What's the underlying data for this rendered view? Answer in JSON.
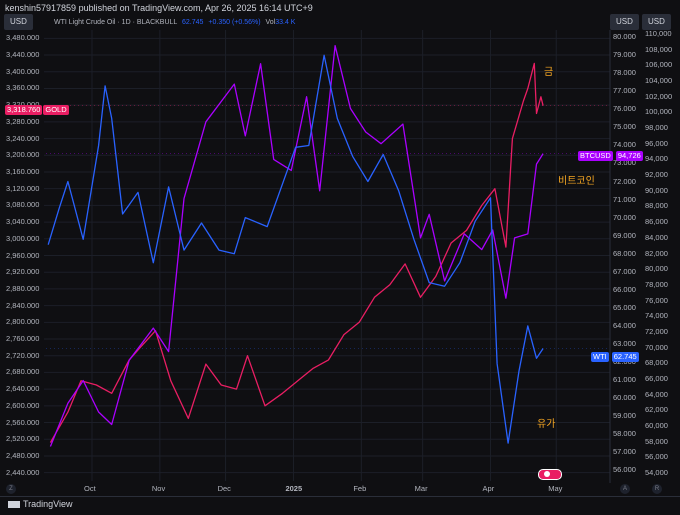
{
  "header": {
    "published": "kenshin57917859 published on TradingView.com, Apr 26, 2025 16:14 UTC+9",
    "left_usd": "USD",
    "right_usd1": "USD",
    "right_usd2": "USD"
  },
  "legend": {
    "symbol": "WTI Light Crude Oil · 1D · BLACKBULL",
    "price": "62.745",
    "change": "+0.350 (+0.56%)",
    "vol_label": "Vol",
    "vol_value": "33.4 K"
  },
  "tags": {
    "gold_value": "3,318.760",
    "gold_name": "GOLD",
    "btc_name": "BTCUSD",
    "btc_value": "94,726",
    "wti_name": "WTI",
    "wti_value": "62.745"
  },
  "annotations": {
    "gold": "금",
    "bitcoin": "비트코인",
    "oil": "유가"
  },
  "footer": {
    "logo": "TradingView",
    "left_corner": "Z",
    "right_corner_a": "A",
    "right_corner_b": "R"
  },
  "colors": {
    "gold": "#e91e63",
    "bitcoin": "#aa00ff",
    "wti": "#2962ff",
    "annotation": "#f5a623"
  },
  "chart_data": {
    "type": "line",
    "title": "WTI Light Crude Oil · 1D · BLACKBULL",
    "x_ticks": [
      "Oct",
      "Nov",
      "Dec",
      "2025",
      "Feb",
      "Mar",
      "Apr",
      "May"
    ],
    "x_range": [
      "2024-09-10",
      "2025-05-05"
    ],
    "left_axis": {
      "label": "USD",
      "series": "GOLD",
      "range": [
        2420,
        3500
      ],
      "ticks": [
        3480,
        3440,
        3400,
        3360,
        3320,
        3280,
        3240,
        3200,
        3160,
        3120,
        3080,
        3040,
        3000,
        2960,
        2920,
        2880,
        2840,
        2800,
        2760,
        2720,
        2680,
        2640,
        2600,
        2560,
        2520,
        2480,
        2440
      ],
      "tick_labels": [
        "3,480.000",
        "3,440.000",
        "3,400.000",
        "3,360.000",
        "3,320.000",
        "3,280.000",
        "3,240.000",
        "3,200.000",
        "3,160.000",
        "3,120.000",
        "3,080.000",
        "3,040.000",
        "3,000.000",
        "2,960.000",
        "2,920.000",
        "2,880.000",
        "2,840.000",
        "2,800.000",
        "2,760.000",
        "2,720.000",
        "2,680.000",
        "2,640.000",
        "2,600.000",
        "2,560.000",
        "2,520.000",
        "2,480.000",
        "2,440.000"
      ]
    },
    "wti_axis": {
      "label": "USD",
      "series": "WTI",
      "range": [
        55.4,
        80.4
      ],
      "ticks": [
        80,
        79,
        78,
        77,
        76,
        75,
        74,
        73,
        72,
        71,
        70,
        69,
        68,
        67,
        66,
        65,
        64,
        63,
        62,
        61,
        60,
        59,
        58,
        57,
        56
      ],
      "tick_labels": [
        "80.000",
        "79.000",
        "78.000",
        "77.000",
        "76.000",
        "75.000",
        "74.000",
        "73.000",
        "72.000",
        "71.000",
        "70.000",
        "69.000",
        "68.000",
        "67.000",
        "66.000",
        "65.000",
        "64.000",
        "63.000",
        "62.000",
        "61.000",
        "60.000",
        "59.000",
        "58.000",
        "57.000",
        "56.000"
      ]
    },
    "btc_axis": {
      "label": "USD",
      "series": "BTCUSD",
      "range": [
        53000,
        110500
      ],
      "ticks": [
        110000,
        108000,
        106000,
        104000,
        102000,
        100000,
        98000,
        96000,
        94000,
        92000,
        90000,
        88000,
        86000,
        84000,
        82000,
        80000,
        78000,
        76000,
        74000,
        72000,
        70000,
        68000,
        66000,
        64000,
        62000,
        60000,
        58000,
        56000,
        54000
      ],
      "tick_labels": [
        "110,000",
        "108,000",
        "106,000",
        "104,000",
        "102,000",
        "100,000",
        "98,000",
        "96,000",
        "94,000",
        "92,000",
        "90,000",
        "88,000",
        "86,000",
        "84,000",
        "82,000",
        "80,000",
        "78,000",
        "76,000",
        "74,000",
        "72,000",
        "70,000",
        "68,000",
        "66,000",
        "64,000",
        "62,000",
        "60,000",
        "58,000",
        "56,000",
        "54,000"
      ]
    },
    "series": [
      {
        "name": "GOLD",
        "axis": "left",
        "x": [
          "2024-09-12",
          "2024-09-20",
          "2024-09-26",
          "2024-10-03",
          "2024-10-10",
          "2024-10-18",
          "2024-10-23",
          "2024-10-30",
          "2024-11-06",
          "2024-11-14",
          "2024-11-22",
          "2024-11-29",
          "2024-12-06",
          "2024-12-11",
          "2024-12-19",
          "2024-12-27",
          "2025-01-03",
          "2025-01-10",
          "2025-01-17",
          "2025-01-24",
          "2025-01-31",
          "2025-02-07",
          "2025-02-14",
          "2025-02-21",
          "2025-02-28",
          "2025-03-07",
          "2025-03-14",
          "2025-03-21",
          "2025-03-28",
          "2025-04-03",
          "2025-04-08",
          "2025-04-11",
          "2025-04-16",
          "2025-04-18",
          "2025-04-21",
          "2025-04-22",
          "2025-04-24",
          "2025-04-25"
        ],
        "values": [
          2512,
          2585,
          2660,
          2650,
          2630,
          2710,
          2740,
          2780,
          2660,
          2570,
          2700,
          2650,
          2640,
          2720,
          2600,
          2630,
          2660,
          2690,
          2710,
          2770,
          2800,
          2860,
          2890,
          2940,
          2860,
          2910,
          2990,
          3020,
          3080,
          3120,
          2980,
          3240,
          3330,
          3360,
          3420,
          3300,
          3340,
          3318.76
        ]
      },
      {
        "name": "BTCUSD",
        "axis": "btc",
        "x": [
          "2024-09-12",
          "2024-09-20",
          "2024-09-27",
          "2024-10-04",
          "2024-10-10",
          "2024-10-18",
          "2024-10-29",
          "2024-11-05",
          "2024-11-12",
          "2024-11-22",
          "2024-12-05",
          "2024-12-10",
          "2024-12-17",
          "2024-12-23",
          "2024-12-31",
          "2025-01-07",
          "2025-01-13",
          "2025-01-20",
          "2025-01-27",
          "2025-02-03",
          "2025-02-10",
          "2025-02-20",
          "2025-02-28",
          "2025-03-04",
          "2025-03-11",
          "2025-03-20",
          "2025-03-28",
          "2025-04-02",
          "2025-04-08",
          "2025-04-12",
          "2025-04-18",
          "2025-04-22",
          "2025-04-25"
        ],
        "values": [
          57400,
          62900,
          65800,
          61800,
          60200,
          68400,
          72500,
          69500,
          89000,
          98800,
          103600,
          97000,
          106200,
          94000,
          92600,
          102000,
          90000,
          108500,
          100500,
          97500,
          96000,
          98500,
          84000,
          87000,
          78500,
          84500,
          82500,
          85000,
          76300,
          84000,
          84500,
          93400,
          94726
        ]
      },
      {
        "name": "WTI",
        "axis": "wti",
        "x": [
          "2024-09-11",
          "2024-09-16",
          "2024-09-20",
          "2024-09-27",
          "2024-10-04",
          "2024-10-07",
          "2024-10-10",
          "2024-10-15",
          "2024-10-22",
          "2024-10-29",
          "2024-11-05",
          "2024-11-12",
          "2024-11-20",
          "2024-11-28",
          "2024-12-05",
          "2024-12-10",
          "2024-12-20",
          "2025-01-02",
          "2025-01-08",
          "2025-01-15",
          "2025-01-21",
          "2025-01-28",
          "2025-02-04",
          "2025-02-11",
          "2025-02-18",
          "2025-02-25",
          "2025-03-04",
          "2025-03-11",
          "2025-03-18",
          "2025-03-25",
          "2025-04-01",
          "2025-04-04",
          "2025-04-09",
          "2025-04-14",
          "2025-04-18",
          "2025-04-22",
          "2025-04-25"
        ],
        "values": [
          68.5,
          70.5,
          72.0,
          68.8,
          74.0,
          77.3,
          75.5,
          70.2,
          71.4,
          67.5,
          71.7,
          68.2,
          69.7,
          68.2,
          68.0,
          70.0,
          69.5,
          73.9,
          74.0,
          79.0,
          75.5,
          73.4,
          72.0,
          73.5,
          71.5,
          68.8,
          66.4,
          66.2,
          67.5,
          69.8,
          71.1,
          61.9,
          57.5,
          61.5,
          64.0,
          62.2,
          62.745
        ]
      }
    ],
    "last_values": {
      "GOLD": 3318.76,
      "BTCUSD": 94726,
      "WTI": 62.745
    }
  }
}
